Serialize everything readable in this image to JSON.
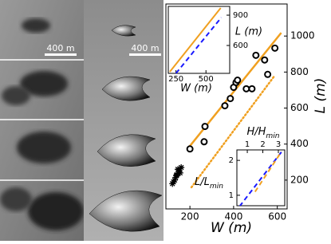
{
  "panels": {
    "scale_labels": [
      "400 m",
      "400 m"
    ]
  },
  "chart_data": [
    {
      "type": "scatter",
      "xlabel": "W (m)",
      "ylabel": "L (m)",
      "xlim": [
        90,
        645
      ],
      "ylim": [
        40,
        1178
      ],
      "xticks": [
        200,
        400,
        600
      ],
      "yticks": [
        200,
        400,
        600,
        800,
        1000
      ],
      "series": [
        {
          "marker": "solid",
          "color": "#f0a020",
          "x": [
            189,
            618
          ],
          "values": [
            373,
            1018
          ]
        },
        {
          "marker": "dotted",
          "color": "#f0a020",
          "x": [
            207,
            589
          ],
          "values": [
            160,
            782
          ]
        },
        {
          "marker": "circle",
          "color": "#000000",
          "x": [
            200,
            265,
            269,
            360,
            385,
            400,
            411,
            418,
            458,
            484,
            502,
            542,
            556,
            589
          ],
          "values": [
            373,
            413,
            498,
            613,
            653,
            715,
            742,
            755,
            707,
            707,
            893,
            867,
            787,
            933
          ]
        },
        {
          "marker": "star",
          "color": "#000000",
          "x": [
            120,
            125,
            130,
            135,
            138,
            140,
            145,
            150,
            155,
            160
          ],
          "values": [
            180,
            190,
            200,
            215,
            225,
            230,
            260,
            250,
            240,
            270
          ]
        }
      ]
    },
    {
      "type": "line",
      "xlabel": "W (m)",
      "ylabel": "L (m)",
      "xlim": [
        186,
        698
      ],
      "ylim": [
        324,
        987
      ],
      "xticks": [
        250,
        500
      ],
      "yticks": [
        600,
        900
      ],
      "series": [
        {
          "marker": "solid",
          "color": "#f0a020",
          "x": [
            199,
            623
          ],
          "values": [
            340,
            971
          ]
        },
        {
          "marker": "dashed",
          "color": "#1a1aff",
          "x": [
            250,
            628
          ],
          "values": [
            324,
            877
          ]
        }
      ]
    },
    {
      "type": "line",
      "xlabel": {
        "text": "H/H",
        "sub": "min"
      },
      "ylabel": {
        "text": "L/L",
        "sub": "min"
      },
      "xlim": [
        0.33,
        3.41
      ],
      "ylim": [
        0.7,
        2.3
      ],
      "xticks": [
        1,
        2,
        3
      ],
      "yticks": [
        1,
        2
      ],
      "series": [
        {
          "marker": "dashed",
          "color": "#1a1aff",
          "x": [
            0.5,
            3.3
          ],
          "values": [
            0.68,
            2.3
          ]
        },
        {
          "marker": "dashed",
          "color": "#f0a020",
          "x": [
            1.5,
            3.2
          ],
          "values": [
            1.1,
            2.25
          ]
        }
      ]
    }
  ]
}
